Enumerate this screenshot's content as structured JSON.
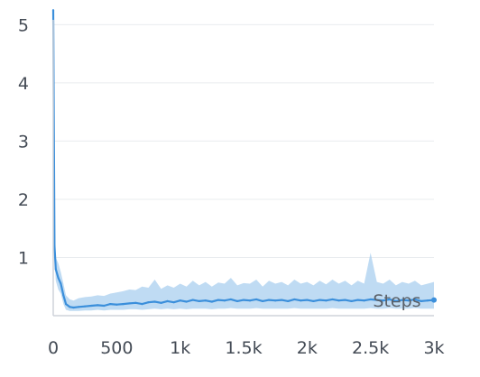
{
  "chart_data": {
    "type": "line",
    "title": "",
    "xlabel": "Steps",
    "ylabel": "",
    "xlim": [
      0,
      3000
    ],
    "ylim": [
      0,
      5.3
    ],
    "grid": true,
    "legend": "none",
    "x_ticks": [
      {
        "value": 0,
        "label": "0"
      },
      {
        "value": 500,
        "label": "500"
      },
      {
        "value": 1000,
        "label": "1k"
      },
      {
        "value": 1500,
        "label": "1.5k"
      },
      {
        "value": 2000,
        "label": "2k"
      },
      {
        "value": 2500,
        "label": "2.5k"
      },
      {
        "value": 3000,
        "label": "3k"
      }
    ],
    "y_ticks": [
      {
        "value": 1,
        "label": "1"
      },
      {
        "value": 2,
        "label": "2"
      },
      {
        "value": 3,
        "label": "3"
      },
      {
        "value": 4,
        "label": "4"
      },
      {
        "value": 5,
        "label": "5"
      }
    ],
    "series_color": "#3b8fdb",
    "band_color": "#a9cfef",
    "series": [
      {
        "x": [
          0,
          10,
          20,
          40,
          60,
          80,
          100,
          130,
          160,
          200,
          250,
          300,
          350,
          400,
          450,
          500,
          550,
          600,
          650,
          700,
          750,
          800,
          850,
          900,
          950,
          1000,
          1050,
          1100,
          1150,
          1200,
          1250,
          1300,
          1350,
          1400,
          1450,
          1500,
          1550,
          1600,
          1650,
          1700,
          1750,
          1800,
          1850,
          1900,
          1950,
          2000,
          2050,
          2100,
          2150,
          2200,
          2250,
          2300,
          2350,
          2400,
          2450,
          2500,
          2550,
          2600,
          2650,
          2700,
          2750,
          2800,
          2850,
          2900,
          2950,
          3000
        ],
        "y": [
          5.25,
          1.2,
          0.8,
          0.65,
          0.55,
          0.35,
          0.2,
          0.15,
          0.14,
          0.15,
          0.16,
          0.17,
          0.18,
          0.17,
          0.2,
          0.19,
          0.2,
          0.21,
          0.22,
          0.2,
          0.23,
          0.24,
          0.22,
          0.25,
          0.23,
          0.26,
          0.24,
          0.27,
          0.25,
          0.26,
          0.24,
          0.27,
          0.26,
          0.28,
          0.25,
          0.27,
          0.26,
          0.28,
          0.25,
          0.27,
          0.26,
          0.27,
          0.25,
          0.28,
          0.26,
          0.27,
          0.25,
          0.27,
          0.26,
          0.28,
          0.26,
          0.27,
          0.25,
          0.27,
          0.26,
          0.28,
          0.27,
          0.26,
          0.28,
          0.25,
          0.27,
          0.26,
          0.28,
          0.25,
          0.26,
          0.27
        ],
        "upper": [
          5.25,
          1.4,
          1.0,
          0.9,
          0.75,
          0.55,
          0.35,
          0.28,
          0.26,
          0.3,
          0.32,
          0.33,
          0.35,
          0.34,
          0.38,
          0.4,
          0.42,
          0.45,
          0.44,
          0.5,
          0.48,
          0.62,
          0.46,
          0.52,
          0.48,
          0.55,
          0.5,
          0.6,
          0.52,
          0.58,
          0.5,
          0.57,
          0.55,
          0.65,
          0.52,
          0.56,
          0.55,
          0.62,
          0.5,
          0.6,
          0.55,
          0.58,
          0.52,
          0.62,
          0.55,
          0.58,
          0.52,
          0.6,
          0.54,
          0.62,
          0.55,
          0.6,
          0.52,
          0.6,
          0.55,
          1.08,
          0.58,
          0.55,
          0.62,
          0.52,
          0.58,
          0.55,
          0.6,
          0.52,
          0.55,
          0.58
        ],
        "lower": [
          5.25,
          1.0,
          0.6,
          0.45,
          0.38,
          0.2,
          0.1,
          0.08,
          0.08,
          0.08,
          0.09,
          0.09,
          0.1,
          0.09,
          0.1,
          0.1,
          0.1,
          0.11,
          0.11,
          0.1,
          0.11,
          0.12,
          0.11,
          0.12,
          0.11,
          0.12,
          0.11,
          0.12,
          0.12,
          0.12,
          0.11,
          0.12,
          0.12,
          0.13,
          0.12,
          0.12,
          0.12,
          0.13,
          0.12,
          0.12,
          0.12,
          0.12,
          0.12,
          0.13,
          0.12,
          0.12,
          0.12,
          0.12,
          0.12,
          0.13,
          0.12,
          0.12,
          0.12,
          0.12,
          0.12,
          0.13,
          0.12,
          0.12,
          0.13,
          0.12,
          0.12,
          0.12,
          0.13,
          0.12,
          0.12,
          0.12
        ]
      }
    ]
  }
}
